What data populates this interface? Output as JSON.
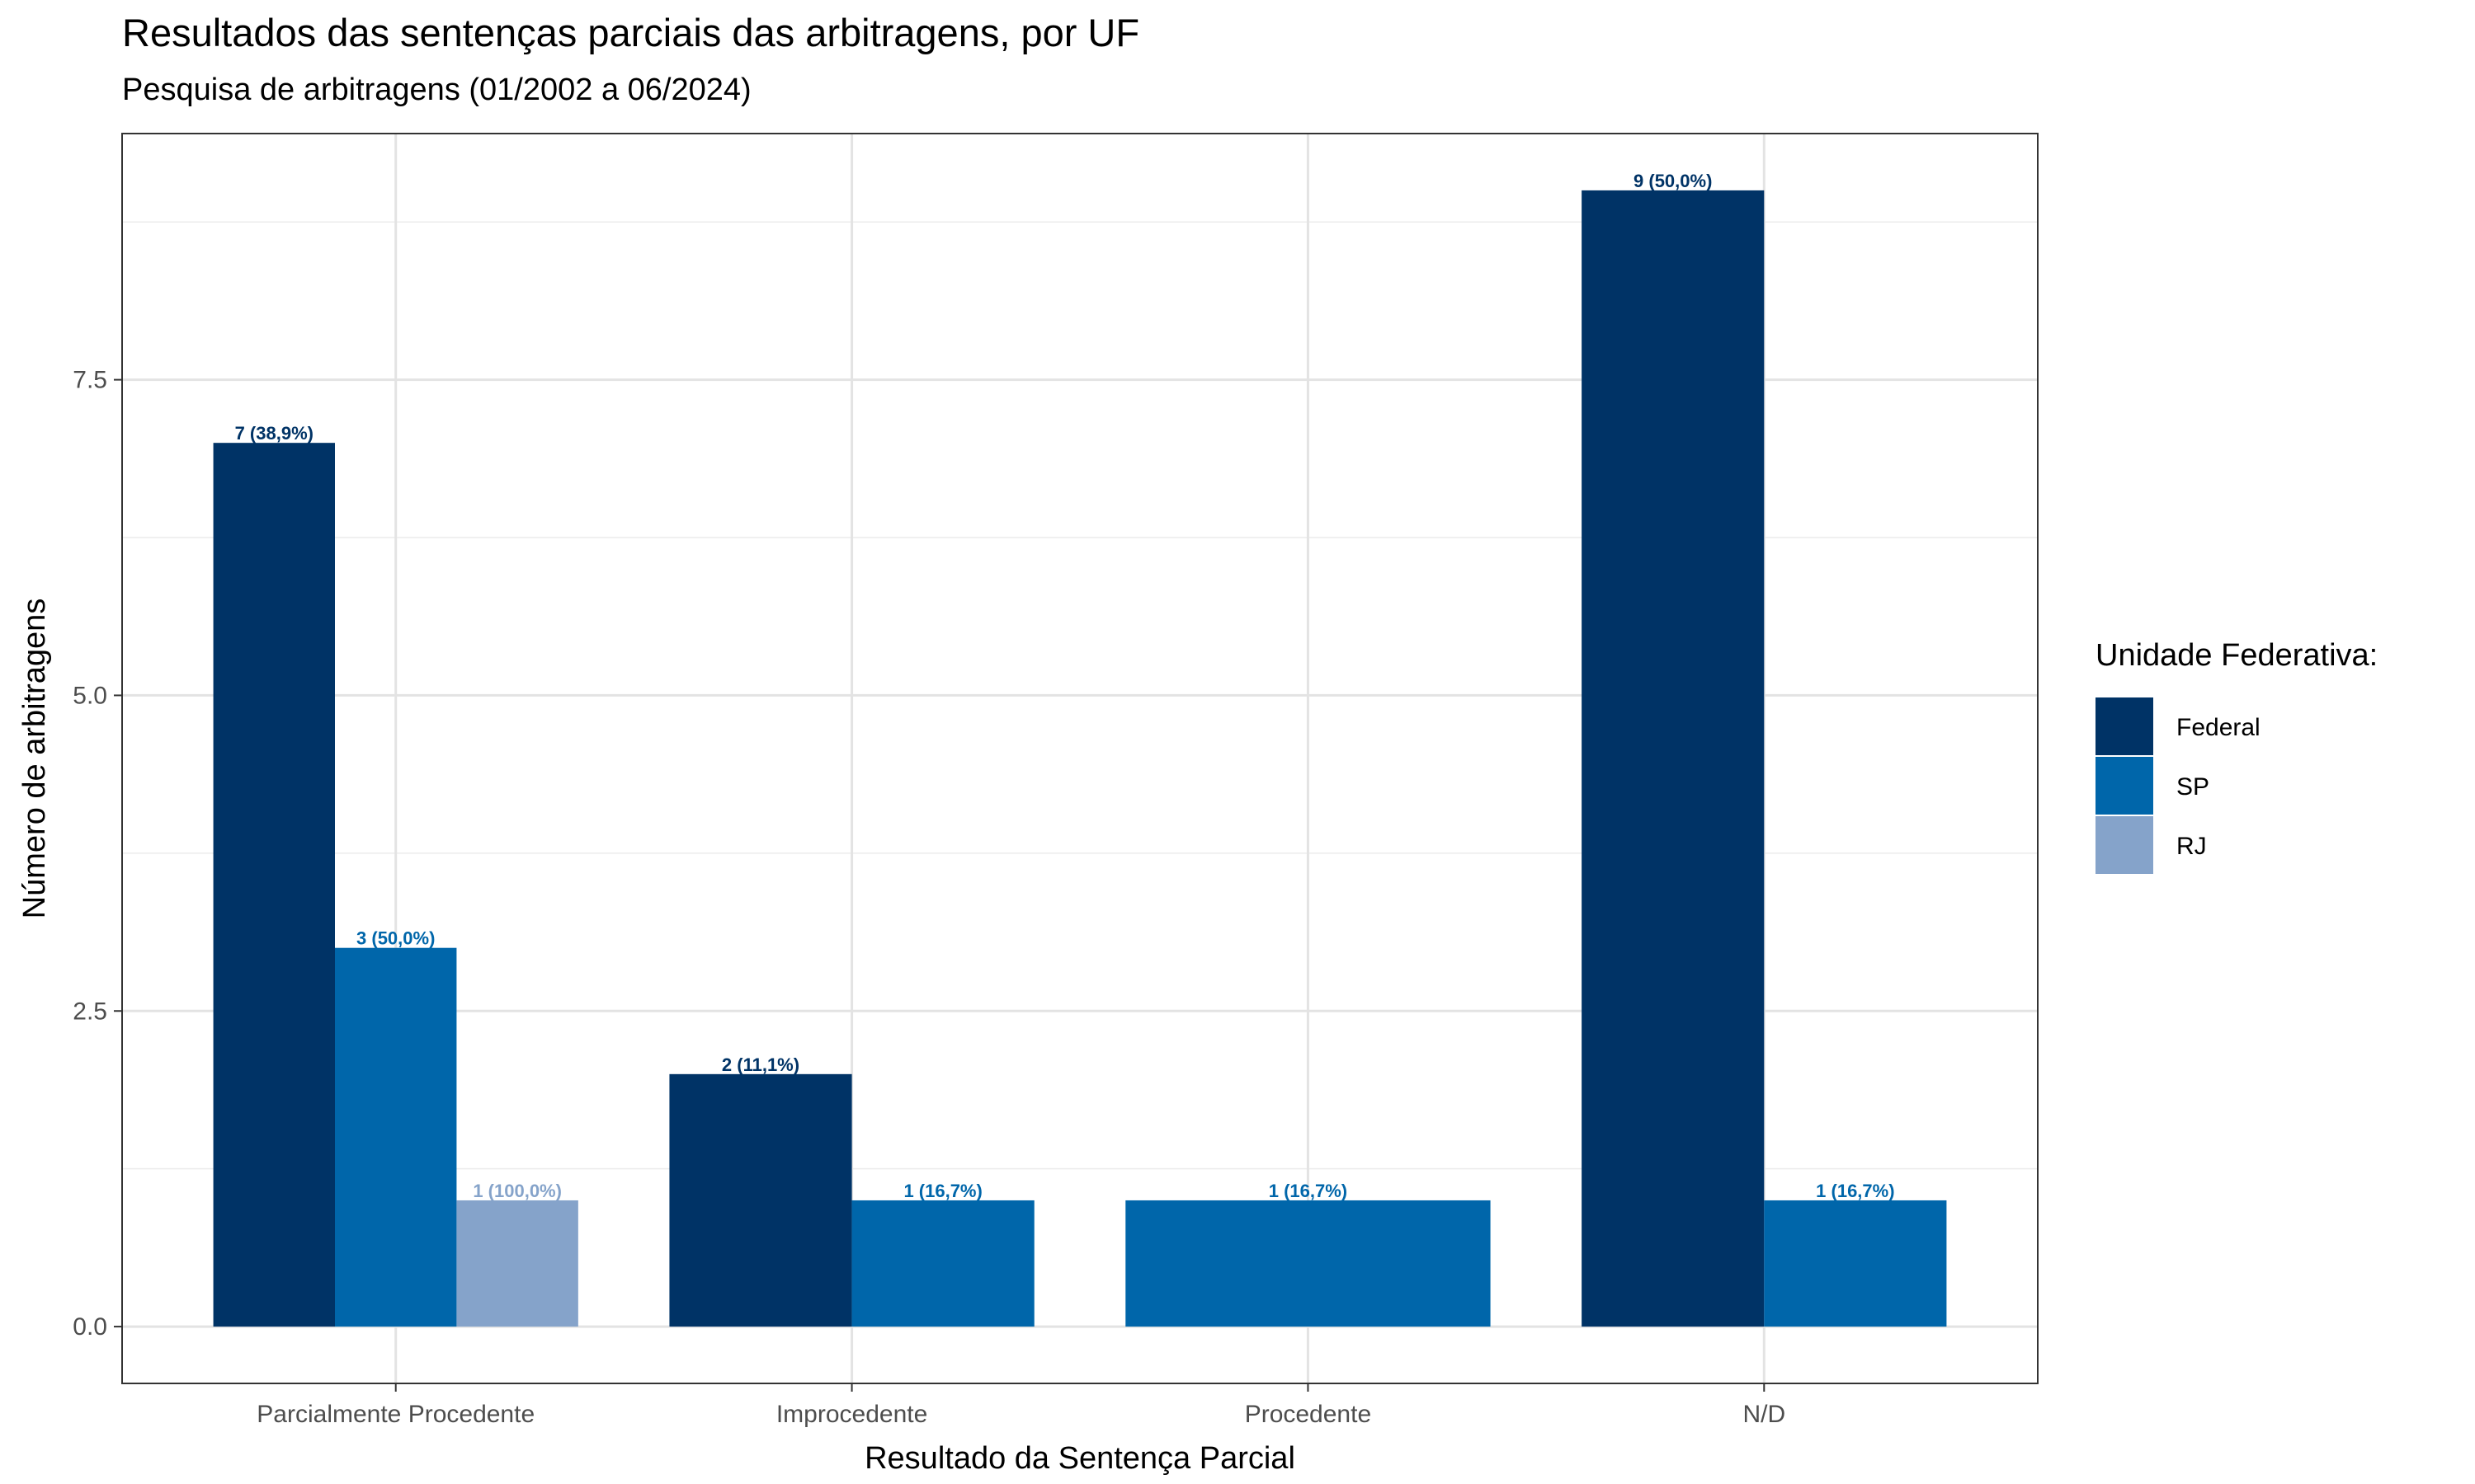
{
  "chart_data": {
    "type": "bar",
    "title": "Resultados das sentenças parciais das arbitragens, por UF",
    "subtitle": "Pesquisa de arbitragens (01/2002 a 06/2024)",
    "xlabel": "Resultado da Sentença Parcial",
    "ylabel": "Número de arbitragens",
    "categories": [
      "Parcialmente Procedente",
      "Improcedente",
      "Procedente",
      "N/D"
    ],
    "ylim": [
      -0.45,
      9.45
    ],
    "yticks": [
      0,
      2.5,
      5,
      7.5
    ],
    "ytick_labels": [
      "0.0",
      "2.5",
      "5.0",
      "7.5"
    ],
    "grid": true,
    "legend": {
      "title": "Unidade Federativa:",
      "position": "right"
    },
    "series": [
      {
        "name": "Federal",
        "color": "#003366",
        "values": [
          7,
          2,
          null,
          9
        ],
        "labels": [
          "7 (38,9%)",
          "2 (11,1%)",
          "",
          "9 (50,0%)"
        ]
      },
      {
        "name": "SP",
        "color": "#0066AA",
        "values": [
          3,
          1,
          1,
          1
        ],
        "labels": [
          "3 (50,0%)",
          "1 (16,7%)",
          "1 (16,7%)",
          "1 (16,7%)"
        ]
      },
      {
        "name": "RJ",
        "color": "#85A3CA",
        "values": [
          1,
          null,
          null,
          null
        ],
        "labels": [
          "1 (100,0%)",
          "",
          "",
          ""
        ]
      }
    ]
  }
}
